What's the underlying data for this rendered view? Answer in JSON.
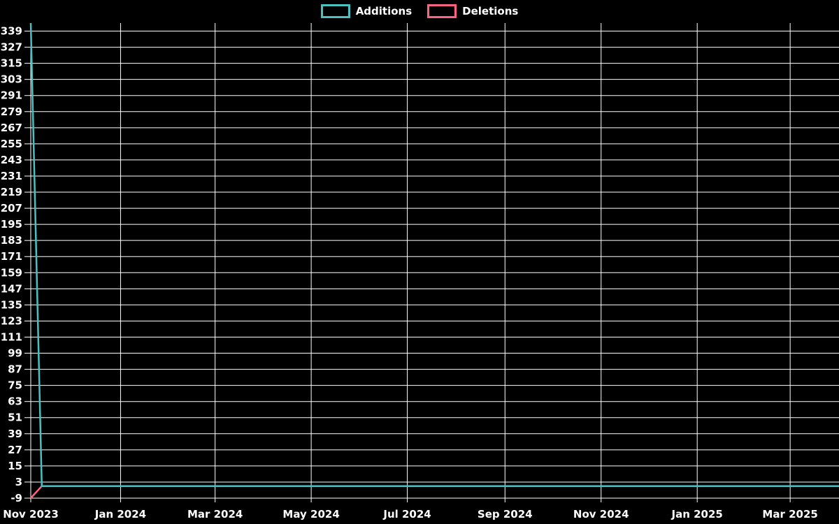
{
  "chart_data": {
    "type": "line",
    "title": "",
    "legend_position": "top",
    "grid": true,
    "background_color": "#000000",
    "grid_color": "#ffffff",
    "text_color": "#ffffff",
    "x_axis": {
      "kind": "time",
      "tick_labels": [
        "Nov 2023",
        "Jan 2024",
        "Mar 2024",
        "May 2024",
        "Jul 2024",
        "Sep 2024",
        "Nov 2024",
        "Jan 2025",
        "Mar 2025"
      ],
      "tick_day_offsets": [
        0,
        57,
        117,
        178,
        239,
        301,
        362,
        423,
        482
      ],
      "range_days": [
        0,
        513
      ]
    },
    "y_axis": {
      "min": -9,
      "max": 345,
      "tick_step": 12,
      "tick_values": [
        339,
        327,
        315,
        303,
        291,
        279,
        267,
        255,
        243,
        231,
        219,
        207,
        195,
        183,
        171,
        159,
        147,
        135,
        123,
        111,
        99,
        87,
        75,
        63,
        51,
        39,
        27,
        15,
        3,
        -9
      ]
    },
    "series": [
      {
        "name": "Additions",
        "color": "#4BC0C0",
        "points": [
          {
            "day": 0,
            "value": 345
          },
          {
            "day": 7,
            "value": 0
          },
          {
            "day": 513,
            "value": 0
          }
        ]
      },
      {
        "name": "Deletions",
        "color": "#FF6384",
        "points": [
          {
            "day": 0,
            "value": -9
          },
          {
            "day": 7,
            "value": 0
          },
          {
            "day": 513,
            "value": 0
          }
        ]
      }
    ]
  }
}
